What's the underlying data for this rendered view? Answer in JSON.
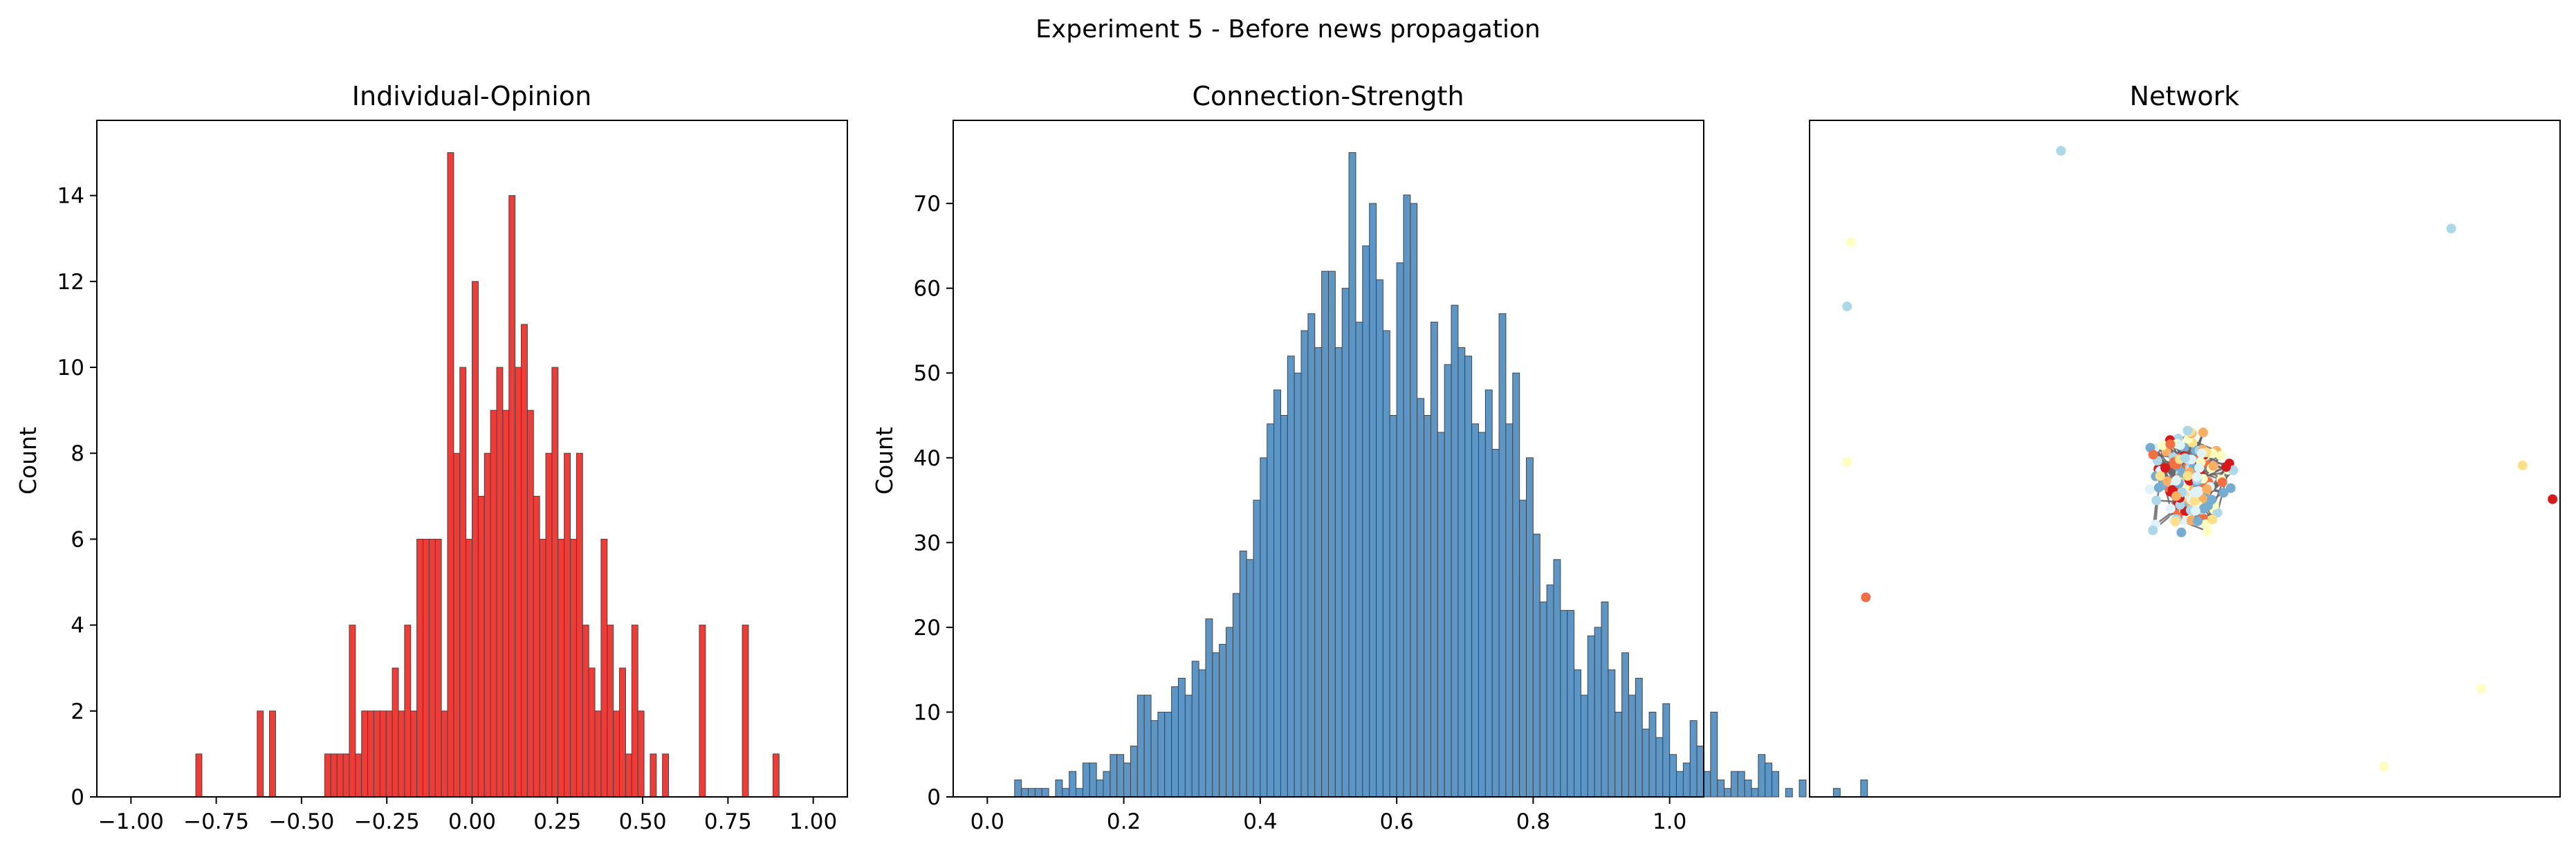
{
  "figure": {
    "suptitle": "Experiment 5 - Before news propagation"
  },
  "colors": {
    "opinion_bar": "#f03b36",
    "strength_bar": "#5b96c6",
    "bar_edge": "#444444",
    "edge_line": "#666666",
    "node_palette": [
      "#d7191c",
      "#fdae61",
      "#fee08b",
      "#ffffbf",
      "#abd9e9",
      "#74add1",
      "#e0f3f8",
      "#f46d43"
    ]
  },
  "chart_data": [
    {
      "type": "bar",
      "title": "Individual-Opinion",
      "xlabel": "",
      "ylabel": "Count",
      "xlim": [
        -1.1,
        1.1
      ],
      "ylim": [
        0,
        15.75
      ],
      "xticks": [
        "−1.00",
        "−0.75",
        "−0.50",
        "−0.25",
        "0.00",
        "0.25",
        "0.50",
        "0.75",
        "1.00"
      ],
      "xtick_values": [
        -1.0,
        -0.75,
        -0.5,
        -0.25,
        0.0,
        0.25,
        0.5,
        0.75,
        1.0
      ],
      "yticks": [
        "0",
        "2",
        "4",
        "6",
        "8",
        "10",
        "12",
        "14"
      ],
      "ytick_values": [
        0,
        2,
        4,
        6,
        8,
        10,
        12,
        14
      ],
      "bin_start": -0.9,
      "bin_width": 0.018,
      "values": [
        0,
        0,
        0,
        0,
        0,
        1,
        0,
        0,
        0,
        0,
        0,
        0,
        0,
        0,
        0,
        2,
        0,
        2,
        0,
        0,
        0,
        0,
        0,
        0,
        0,
        0,
        1,
        1,
        1,
        1,
        4,
        1,
        2,
        2,
        2,
        2,
        2,
        3,
        2,
        4,
        2,
        6,
        6,
        6,
        6,
        2,
        15,
        8,
        10,
        6,
        12,
        7,
        8,
        9,
        10,
        9,
        14,
        10,
        11,
        9,
        7,
        6,
        8,
        10,
        6,
        8,
        6,
        8,
        4,
        3,
        2,
        6,
        4,
        2,
        3,
        1,
        4,
        2,
        0,
        1,
        0,
        1,
        0,
        0,
        0,
        0,
        0,
        4,
        0,
        0,
        0,
        0,
        0,
        0,
        4,
        0,
        0,
        0,
        0,
        1
      ],
      "grid": false,
      "legend": "none"
    },
    {
      "type": "bar",
      "title": "Connection-Strength",
      "xlabel": "",
      "ylabel": "Count",
      "xlim": [
        -0.05,
        1.05
      ],
      "ylim": [
        0,
        79.8
      ],
      "xticks": [
        "0.0",
        "0.2",
        "0.4",
        "0.6",
        "0.8",
        "1.0"
      ],
      "xtick_values": [
        0.0,
        0.2,
        0.4,
        0.6,
        0.8,
        1.0
      ],
      "yticks": [
        "0",
        "10",
        "20",
        "30",
        "40",
        "50",
        "60",
        "70"
      ],
      "ytick_values": [
        0,
        10,
        20,
        30,
        40,
        50,
        60,
        70
      ],
      "bin_start": 0.01,
      "bin_width": 0.01,
      "values": [
        0,
        0,
        0,
        2,
        1,
        1,
        1,
        1,
        0,
        2,
        1,
        3,
        1,
        4,
        4,
        2,
        3,
        5,
        5,
        4,
        6,
        12,
        12,
        9,
        10,
        10,
        13,
        14,
        12,
        16,
        15,
        21,
        17,
        18,
        20,
        24,
        29,
        28,
        35,
        40,
        44,
        48,
        45,
        52,
        50,
        55,
        57,
        53,
        62,
        62,
        53,
        60,
        76,
        56,
        65,
        70,
        61,
        55,
        45,
        63,
        71,
        70,
        47,
        45,
        56,
        43,
        51,
        58,
        53,
        52,
        44,
        43,
        48,
        41,
        57,
        44,
        50,
        35,
        40,
        31,
        23,
        25,
        28,
        22,
        22,
        15,
        12,
        19,
        20,
        23,
        15,
        10,
        17,
        12,
        14,
        8,
        10,
        7,
        11,
        5,
        3,
        4,
        9,
        6,
        3,
        10,
        2,
        1,
        3,
        3,
        2,
        1,
        5,
        4,
        3,
        0,
        1,
        0,
        2,
        0,
        0,
        0,
        0,
        1,
        0,
        0,
        0,
        2
      ],
      "grid": false,
      "legend": "none"
    },
    {
      "type": "scatter",
      "title": "Network",
      "xlabel": "",
      "ylabel": "",
      "axes": "off",
      "grid": false,
      "legend": "none"
    }
  ]
}
